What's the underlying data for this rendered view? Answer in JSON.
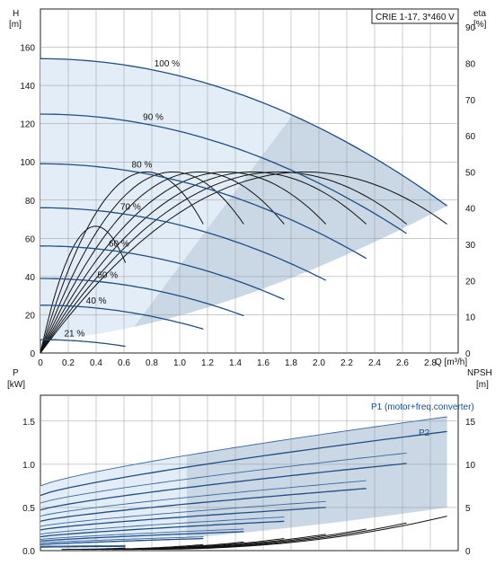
{
  "chart_data": [
    {
      "type": "line",
      "model_label": "CRIE 1-17, 3*460 V",
      "y_left_label": [
        "H",
        "[m]"
      ],
      "y_right_label": [
        "eta",
        "[%]"
      ],
      "x_label": "Q [m³/h]",
      "xlim": [
        0,
        3.0
      ],
      "ylim_left": [
        0,
        180
      ],
      "ylim_right": [
        0,
        95
      ],
      "x_ticks": [
        "0",
        "0.2",
        "0.4",
        "0.6",
        "0.8",
        "1.0",
        "1.2",
        "1.4",
        "1.6",
        "1.8",
        "2.0",
        "2.2",
        "2.4",
        "2.6",
        "2.8"
      ],
      "y_left_ticks": [
        "0",
        "20",
        "40",
        "60",
        "80",
        "100",
        "120",
        "140",
        "160"
      ],
      "y_right_ticks": [
        "0",
        "10",
        "20",
        "30",
        "40",
        "50",
        "60",
        "70",
        "80",
        "90"
      ],
      "head_curves": [
        {
          "name": "100 %",
          "q_max": 2.92,
          "h0": 154
        },
        {
          "name": "90 %",
          "q_max": 2.63,
          "h0": 125
        },
        {
          "name": "80 %",
          "q_max": 2.34,
          "h0": 99
        },
        {
          "name": "70 %",
          "q_max": 2.05,
          "h0": 76
        },
        {
          "name": "60 %",
          "q_max": 1.75,
          "h0": 56
        },
        {
          "name": "50 %",
          "q_max": 1.46,
          "h0": 39
        },
        {
          "name": "40 %",
          "q_max": 1.17,
          "h0": 25
        },
        {
          "name": "21 %",
          "q_max": 0.61,
          "h0": 7
        }
      ],
      "eta_max": 50,
      "eta_peak_q": 1.9
    },
    {
      "type": "line",
      "y_left_label": [
        "P",
        "[kW]"
      ],
      "y_right_label": [
        "NPSH",
        "[m]"
      ],
      "xlim": [
        0,
        3.0
      ],
      "ylim_left": [
        0,
        1.8
      ],
      "ylim_right": [
        0,
        18
      ],
      "y_left_ticks": [
        "0.0",
        "0.5",
        "1.0",
        "1.5"
      ],
      "y_right_ticks": [
        "0",
        "5",
        "10",
        "15"
      ],
      "series_labels": [
        "P1 (motor+freq.converter)",
        "P2"
      ],
      "p1_curves": [
        {
          "q_max": 2.92,
          "p0": 0.75,
          "p_end": 1.55
        },
        {
          "q_max": 2.63,
          "p0": 0.55,
          "p_end": 1.13
        },
        {
          "q_max": 2.34,
          "p0": 0.4,
          "p_end": 0.81
        },
        {
          "q_max": 2.05,
          "p0": 0.28,
          "p_end": 0.57
        },
        {
          "q_max": 1.75,
          "p0": 0.19,
          "p_end": 0.39
        },
        {
          "q_max": 1.46,
          "p0": 0.13,
          "p_end": 0.25
        },
        {
          "q_max": 1.17,
          "p0": 0.09,
          "p_end": 0.16
        },
        {
          "q_max": 0.61,
          "p0": 0.05,
          "p_end": 0.06
        }
      ],
      "p2_curves": [
        {
          "q_max": 2.92,
          "p0": 0.64,
          "p_end": 1.38
        },
        {
          "q_max": 2.63,
          "p0": 0.47,
          "p_end": 1.01
        },
        {
          "q_max": 2.34,
          "p0": 0.34,
          "p_end": 0.72
        },
        {
          "q_max": 2.05,
          "p0": 0.24,
          "p_end": 0.5
        },
        {
          "q_max": 1.75,
          "p0": 0.16,
          "p_end": 0.34
        },
        {
          "q_max": 1.46,
          "p0": 0.11,
          "p_end": 0.22
        },
        {
          "q_max": 1.17,
          "p0": 0.07,
          "p_end": 0.14
        },
        {
          "q_max": 0.61,
          "p0": 0.04,
          "p_end": 0.05
        }
      ],
      "npsh_curves": [
        {
          "q_max": 2.92,
          "n_end": 4.0
        },
        {
          "q_max": 2.63,
          "n_end": 3.2
        },
        {
          "q_max": 2.34,
          "n_end": 2.5
        },
        {
          "q_max": 2.05,
          "n_end": 1.9
        },
        {
          "q_max": 1.75,
          "n_end": 1.4
        },
        {
          "q_max": 1.46,
          "n_end": 1.0
        },
        {
          "q_max": 1.17,
          "n_end": 0.7
        },
        {
          "q_max": 0.61,
          "n_end": 0.3
        }
      ],
      "colors": {
        "curve": "#1f4e85",
        "area_dark": "#cad7e5",
        "area_light": "#e3edf8",
        "grid": "#999999"
      }
    }
  ]
}
